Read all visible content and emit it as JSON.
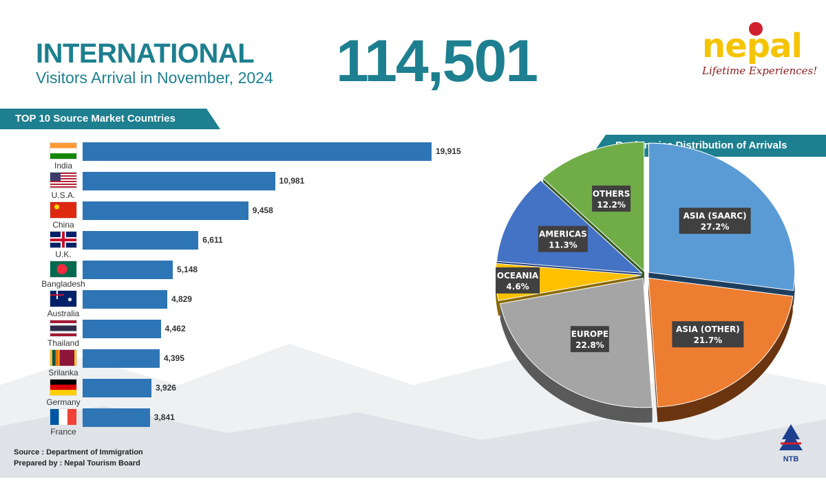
{
  "header": {
    "title": "INTERNATIONAL",
    "subtitle": "Visitors Arrival in November, 2024",
    "total": "114,501"
  },
  "logo": {
    "name": "nepal",
    "tagline": "Lifetime Experiences!",
    "org_mark": "NTB"
  },
  "footer": {
    "source": "Source : Department of Immigration",
    "prepared": "Prepared by : Nepal Tourism Board"
  },
  "chart_data": [
    {
      "type": "bar",
      "title": "TOP 10 Source Market Countries",
      "orientation": "horizontal",
      "categories": [
        "India",
        "U.S.A.",
        "China",
        "U.K.",
        "Bangladesh",
        "Australia",
        "Thailand",
        "Srilanka",
        "Germany",
        "France"
      ],
      "flags": [
        "in",
        "us",
        "cn",
        "uk",
        "bd",
        "au",
        "th",
        "lk",
        "de",
        "fr"
      ],
      "values": [
        19915,
        10981,
        9458,
        6611,
        5148,
        4829,
        4462,
        4395,
        3926,
        3841
      ],
      "value_labels": [
        "19,915",
        "10,981",
        "9,458",
        "6,611",
        "5,148",
        "4,829",
        "4,462",
        "4,395",
        "3,926",
        "3,841"
      ],
      "color": "#2e75b6"
    },
    {
      "type": "pie",
      "title": "Regionwise Distribution of Arrivals",
      "labels": [
        "ASIA (SAARC)",
        "ASIA (OTHER)",
        "EUROPE",
        "OCEANIA",
        "AMERICAS",
        "OTHERS"
      ],
      "values": [
        27.2,
        21.7,
        22.8,
        4.6,
        11.3,
        12.2
      ],
      "value_labels": [
        "27.2%",
        "21.7%",
        "22.8%",
        "4.6%",
        "11.3%",
        "12.2%"
      ],
      "colors": [
        "#5b9bd5",
        "#ed7d31",
        "#a5a5a5",
        "#ffc000",
        "#4472c4",
        "#70ad47"
      ],
      "shade_colors": [
        "#1f3f5f",
        "#6b3510",
        "#5a5a5a",
        "#8a6a00",
        "#203a70",
        "#375a22"
      ]
    }
  ]
}
